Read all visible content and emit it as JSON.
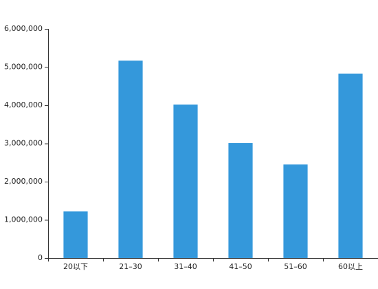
{
  "chart_data": {
    "type": "bar",
    "categories": [
      "20以下",
      "21–30",
      "31–40",
      "41–50",
      "51–60",
      "60以上"
    ],
    "values": [
      1220000,
      5170000,
      4020000,
      3010000,
      2450000,
      4830000
    ],
    "color": "#3498db",
    "ylim": [
      0,
      6000000
    ],
    "yticks": [
      0,
      {
        "value": 1000000,
        "label": "1,000,000"
      },
      {
        "value": 2000000,
        "label": "2,000,000"
      },
      {
        "value": 3000000,
        "label": "3,000,000"
      },
      {
        "value": 4000000,
        "label": "4,000,000"
      },
      {
        "value": 5000000,
        "label": "5,000,000"
      },
      {
        "value": 6000000,
        "label": "6,000,000"
      }
    ],
    "grid": false
  }
}
